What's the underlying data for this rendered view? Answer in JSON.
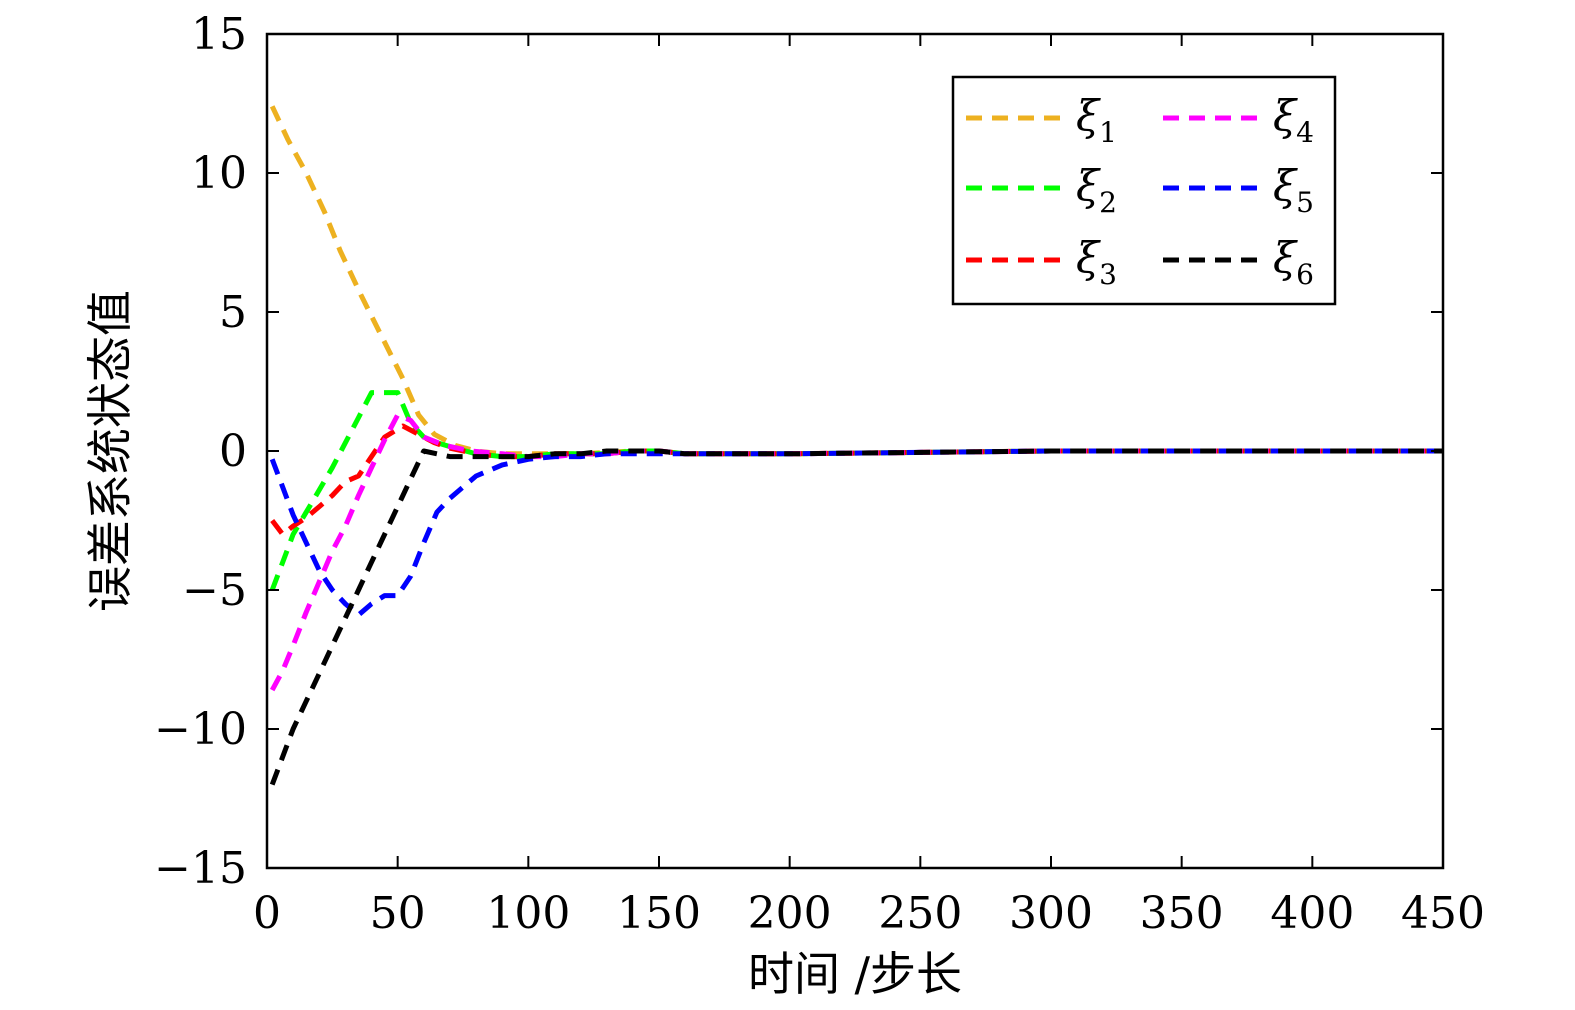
{
  "chart_data": {
    "type": "line",
    "xlabel": "时间 /步长",
    "ylabel": "误差系统状态值",
    "xlim": [
      0,
      450
    ],
    "ylim": [
      -15,
      15
    ],
    "xticks": [
      0,
      50,
      100,
      150,
      200,
      250,
      300,
      350,
      400,
      450
    ],
    "yticks": [
      -15,
      -10,
      -5,
      0,
      5,
      10,
      15
    ],
    "xtick_labels": [
      "0",
      "50",
      "100",
      "150",
      "200",
      "250",
      "300",
      "350",
      "400",
      "450"
    ],
    "ytick_labels": [
      "−15",
      "−10",
      "−5",
      "0",
      "5",
      "10",
      "15"
    ],
    "grid": false,
    "legend_position": "top-right",
    "line_style": "dashed",
    "series": [
      {
        "name": "ξ",
        "sub": "1",
        "color": "#EDB120",
        "x": [
          2,
          8,
          15,
          22,
          28,
          36,
          44,
          52,
          58,
          64,
          72,
          80,
          90,
          100,
          110,
          120,
          130,
          140,
          150,
          160,
          180,
          200,
          250,
          300,
          350,
          400,
          450
        ],
        "y": [
          12.4,
          11.2,
          10.0,
          8.6,
          7.2,
          5.6,
          4.1,
          2.6,
          1.3,
          0.6,
          0.2,
          0.0,
          -0.1,
          -0.1,
          -0.1,
          -0.1,
          -0.05,
          0.0,
          0.0,
          -0.1,
          -0.1,
          -0.1,
          -0.05,
          0.0,
          0.0,
          0.0,
          0.0
        ]
      },
      {
        "name": "ξ",
        "sub": "2",
        "color": "#00FF00",
        "x": [
          2,
          6,
          10,
          15,
          20,
          25,
          30,
          35,
          40,
          45,
          50,
          55,
          60,
          65,
          72,
          80,
          90,
          100,
          110,
          120,
          130,
          140,
          150,
          160,
          200,
          250,
          300,
          350,
          400,
          450
        ],
        "y": [
          -5.0,
          -4.0,
          -3.0,
          -2.2,
          -1.4,
          -0.6,
          0.3,
          1.2,
          2.1,
          2.1,
          2.1,
          1.0,
          0.5,
          0.3,
          0.1,
          -0.1,
          -0.2,
          -0.2,
          -0.1,
          -0.1,
          -0.1,
          0.0,
          0.0,
          -0.1,
          -0.1,
          -0.05,
          0.0,
          0.0,
          0.0,
          0.0
        ]
      },
      {
        "name": "ξ",
        "sub": "3",
        "color": "#FF0000",
        "x": [
          2,
          6,
          10,
          15,
          20,
          25,
          30,
          35,
          40,
          45,
          52,
          58,
          64,
          70,
          80,
          90,
          100,
          110,
          120,
          130,
          140,
          150,
          160,
          200,
          250,
          300,
          350,
          400,
          450
        ],
        "y": [
          -2.5,
          -3.0,
          -2.7,
          -2.4,
          -2.0,
          -1.6,
          -1.1,
          -0.9,
          -0.2,
          0.5,
          0.9,
          0.6,
          0.3,
          0.1,
          -0.1,
          -0.2,
          -0.2,
          -0.1,
          -0.1,
          -0.1,
          0.0,
          0.0,
          -0.1,
          -0.1,
          -0.05,
          0.0,
          0.0,
          0.0,
          0.0
        ]
      },
      {
        "name": "ξ",
        "sub": "4",
        "color": "#FF00FF",
        "x": [
          2,
          6,
          10,
          15,
          20,
          25,
          30,
          35,
          40,
          45,
          50,
          55,
          60,
          68,
          78,
          90,
          100,
          110,
          120,
          130,
          140,
          150,
          160,
          200,
          250,
          300,
          350,
          400,
          450
        ],
        "y": [
          -8.6,
          -7.9,
          -7.0,
          -5.8,
          -4.7,
          -3.6,
          -2.7,
          -1.6,
          -0.6,
          0.4,
          1.3,
          1.1,
          0.5,
          0.2,
          0.0,
          -0.1,
          -0.2,
          -0.2,
          -0.1,
          -0.1,
          0.0,
          0.0,
          -0.1,
          -0.1,
          -0.05,
          0.0,
          0.0,
          0.0,
          0.0
        ]
      },
      {
        "name": "ξ",
        "sub": "5",
        "color": "#0000FF",
        "x": [
          2,
          6,
          10,
          15,
          20,
          25,
          30,
          35,
          40,
          45,
          50,
          55,
          60,
          65,
          70,
          75,
          80,
          85,
          90,
          100,
          110,
          120,
          130,
          140,
          150,
          160,
          200,
          250,
          300,
          350,
          400,
          450
        ],
        "y": [
          -0.3,
          -1.3,
          -2.3,
          -3.3,
          -4.3,
          -5.0,
          -5.5,
          -5.9,
          -5.5,
          -5.2,
          -5.2,
          -4.5,
          -3.3,
          -2.2,
          -1.7,
          -1.3,
          -0.9,
          -0.7,
          -0.5,
          -0.3,
          -0.2,
          -0.2,
          -0.1,
          -0.1,
          -0.1,
          -0.1,
          -0.1,
          -0.05,
          0.0,
          0.0,
          0.0,
          0.0
        ]
      },
      {
        "name": "ξ",
        "sub": "6",
        "color": "#000000",
        "x": [
          2,
          6,
          10,
          15,
          20,
          25,
          30,
          35,
          40,
          45,
          50,
          55,
          60,
          65,
          70,
          78,
          90,
          100,
          110,
          120,
          130,
          140,
          150,
          160,
          200,
          250,
          300,
          350,
          400,
          450
        ],
        "y": [
          -12.0,
          -11.0,
          -10.0,
          -9.0,
          -8.0,
          -7.0,
          -6.0,
          -5.0,
          -4.0,
          -3.0,
          -2.0,
          -1.0,
          0.0,
          -0.1,
          -0.2,
          -0.2,
          -0.2,
          -0.2,
          -0.1,
          -0.1,
          0.0,
          0.0,
          0.0,
          -0.1,
          -0.1,
          -0.05,
          0.0,
          0.0,
          0.0,
          0.0
        ]
      }
    ]
  }
}
